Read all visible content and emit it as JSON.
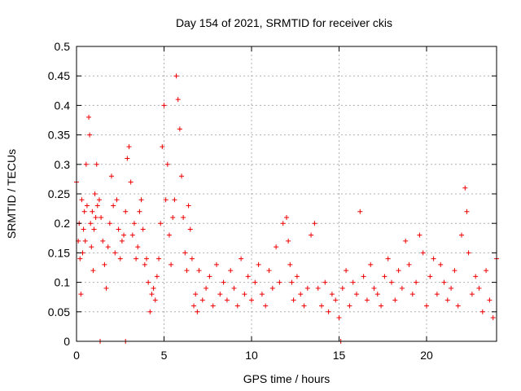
{
  "chart_data": {
    "type": "scatter",
    "title": "Day 154 of 2021, SRMTID for receiver ckis",
    "xlabel": "GPS time / hours",
    "ylabel": "SRMTID / TECUs",
    "xlim": [
      0,
      24
    ],
    "ylim": [
      0,
      0.5
    ],
    "xticks": [
      0,
      5,
      10,
      15,
      20
    ],
    "yticks": [
      0,
      0.05,
      0.1,
      0.15,
      0.2,
      0.25,
      0.3,
      0.35,
      0.4,
      0.45,
      0.5
    ],
    "xtick_labels": [
      "0",
      "5",
      "10",
      "15",
      "20"
    ],
    "ytick_labels": [
      "0",
      "0.05",
      "0.1",
      "0.15",
      "0.2",
      "0.25",
      "0.3",
      "0.35",
      "0.4",
      "0.45",
      "0.5"
    ],
    "grid": true,
    "marker": "plus",
    "color": "#ee0000",
    "series": [
      {
        "x": [
          0.0,
          0.1,
          0.15,
          0.2,
          0.25,
          0.3,
          0.35,
          0.4,
          0.45,
          0.5,
          0.55,
          0.6,
          0.7,
          0.75,
          0.8,
          0.85,
          0.9,
          0.95,
          1.0,
          1.05,
          1.1,
          1.15,
          1.2,
          1.3,
          1.4,
          1.5,
          1.6,
          1.7,
          1.8,
          1.9,
          2.0,
          2.1,
          2.2,
          2.3,
          2.4,
          2.5,
          2.6,
          2.7,
          2.8,
          2.9,
          3.0,
          3.1,
          3.2,
          3.3,
          3.4,
          3.5,
          3.6,
          3.7,
          3.8,
          3.9,
          4.0,
          4.1,
          4.2,
          4.3,
          4.4,
          4.5,
          4.6,
          4.7,
          4.8,
          4.9,
          5.0,
          5.1,
          5.2,
          5.3,
          5.4,
          5.5,
          5.6,
          5.7,
          5.8,
          5.9,
          6.0,
          6.1,
          6.2,
          6.3,
          6.4,
          6.5,
          6.6,
          6.7,
          6.8,
          6.9,
          7.0,
          7.2,
          7.4,
          7.6,
          7.8,
          8.0,
          8.2,
          8.4,
          8.6,
          8.8,
          9.0,
          9.2,
          9.4,
          9.6,
          9.8,
          10.0,
          10.2,
          10.4,
          10.6,
          10.8,
          11.0,
          11.2,
          11.4,
          11.6,
          11.8,
          12.0,
          12.1,
          12.2,
          12.3,
          12.4,
          12.6,
          12.8,
          13.0,
          13.2,
          13.4,
          13.6,
          13.8,
          14.0,
          14.2,
          14.4,
          14.6,
          14.8,
          15.0,
          15.2,
          15.4,
          15.6,
          15.8,
          16.0,
          16.2,
          16.4,
          16.6,
          16.8,
          17.0,
          17.2,
          17.4,
          17.6,
          17.8,
          18.0,
          18.2,
          18.4,
          18.6,
          18.8,
          19.0,
          19.2,
          19.4,
          19.6,
          19.8,
          20.0,
          20.2,
          20.4,
          20.6,
          20.8,
          21.0,
          21.2,
          21.4,
          21.6,
          21.8,
          22.0,
          22.2,
          22.3,
          22.4,
          22.6,
          22.8,
          23.0,
          23.2,
          23.4,
          23.6,
          23.8,
          24.0
        ],
        "y": [
          0.27,
          0.17,
          0.2,
          0.14,
          0.08,
          0.24,
          0.15,
          0.19,
          0.22,
          0.17,
          0.3,
          0.23,
          0.38,
          0.35,
          0.2,
          0.16,
          0.22,
          0.12,
          0.19,
          0.25,
          0.21,
          0.3,
          0.23,
          0.24,
          0.21,
          0.17,
          0.13,
          0.09,
          0.16,
          0.2,
          0.28,
          0.23,
          0.15,
          0.24,
          0.19,
          0.14,
          0.17,
          0.18,
          0.22,
          0.31,
          0.33,
          0.27,
          0.18,
          0.2,
          0.14,
          0.16,
          0.22,
          0.24,
          0.19,
          0.13,
          0.14,
          0.1,
          0.05,
          0.08,
          0.09,
          0.07,
          0.11,
          0.14,
          0.2,
          0.33,
          0.4,
          0.24,
          0.3,
          0.18,
          0.13,
          0.21,
          0.24,
          0.45,
          0.41,
          0.36,
          0.28,
          0.21,
          0.15,
          0.12,
          0.23,
          0.19,
          0.14,
          0.06,
          0.08,
          0.05,
          0.12,
          0.07,
          0.09,
          0.11,
          0.06,
          0.13,
          0.08,
          0.1,
          0.07,
          0.12,
          0.09,
          0.06,
          0.14,
          0.08,
          0.11,
          0.07,
          0.1,
          0.13,
          0.08,
          0.06,
          0.12,
          0.09,
          0.16,
          0.1,
          0.2,
          0.21,
          0.17,
          0.13,
          0.1,
          0.07,
          0.11,
          0.08,
          0.06,
          0.09,
          0.18,
          0.2,
          0.09,
          0.06,
          0.1,
          0.05,
          0.08,
          0.07,
          0.04,
          0.09,
          0.12,
          0.06,
          0.1,
          0.08,
          0.22,
          0.11,
          0.07,
          0.13,
          0.09,
          0.08,
          0.06,
          0.11,
          0.14,
          0.1,
          0.07,
          0.12,
          0.09,
          0.17,
          0.13,
          0.08,
          0.1,
          0.18,
          0.15,
          0.06,
          0.11,
          0.14,
          0.08,
          0.13,
          0.1,
          0.07,
          0.09,
          0.12,
          0.06,
          0.18,
          0.26,
          0.22,
          0.15,
          0.08,
          0.11,
          0.09,
          0.05,
          0.12,
          0.07,
          0.04,
          0.14
        ]
      },
      {
        "x": [
          1.35,
          2.8,
          15.1
        ],
        "y": [
          0.0,
          0.0,
          0.0
        ]
      }
    ]
  }
}
